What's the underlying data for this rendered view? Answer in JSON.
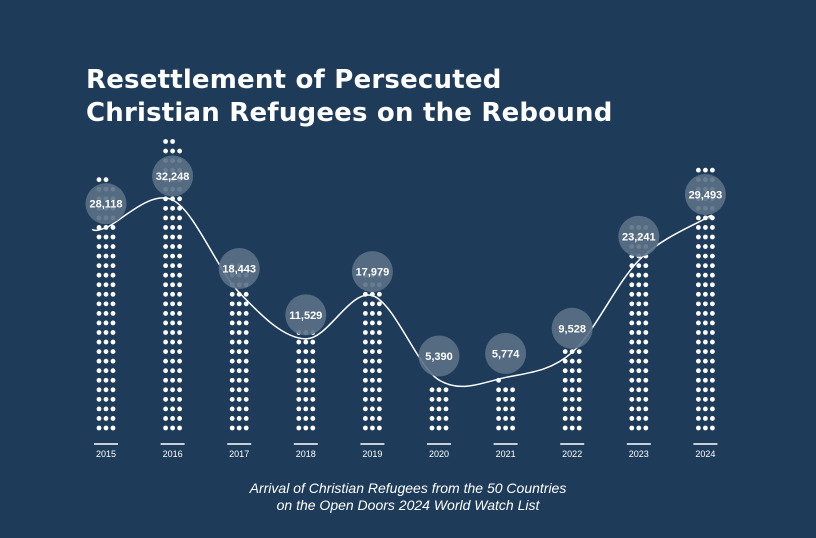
{
  "title": {
    "line1": "Resettlement of Persecuted",
    "line2": "Christian Refugees on the Rebound"
  },
  "caption": {
    "line1": "Arrival of Christian Refugees from the 50 Countries",
    "line2": "on the Open Doors 2024 World Watch List"
  },
  "colors": {
    "background": "#1e3c5a",
    "dots": "#ffffff",
    "bubble": "#5a7086",
    "line": "#ffffff"
  },
  "chart_data": {
    "type": "bar",
    "style": "dot-columns with trend line and value bubbles",
    "categories": [
      "2015",
      "2016",
      "2017",
      "2018",
      "2019",
      "2020",
      "2021",
      "2022",
      "2023",
      "2024"
    ],
    "values": [
      28118,
      32248,
      18443,
      11529,
      17979,
      5390,
      5774,
      9528,
      23241,
      29493
    ],
    "labels": [
      "28,118",
      "32,248",
      "18,443",
      "11,529",
      "17,979",
      "5,390",
      "5,774",
      "9,528",
      "23,241",
      "29,493"
    ],
    "title": "Resettlement of Persecuted Christian Refugees on the Rebound",
    "xlabel": "",
    "ylabel": "",
    "grid": false,
    "legend": "none"
  }
}
